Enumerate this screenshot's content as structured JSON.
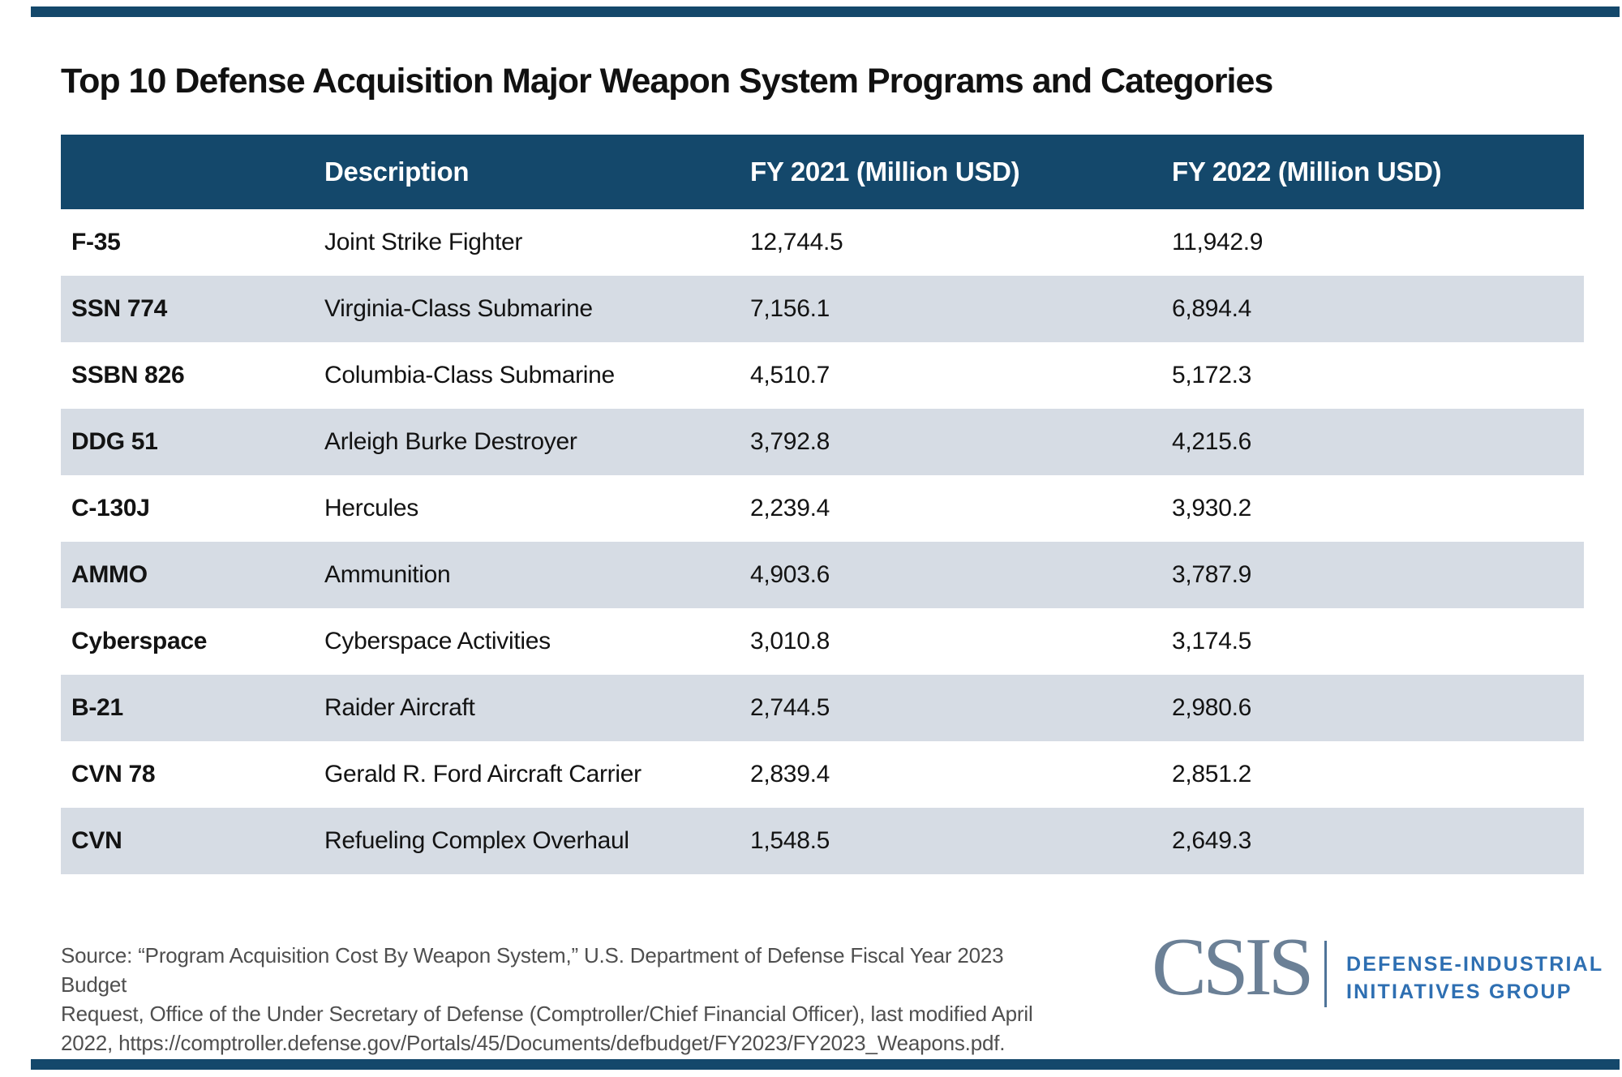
{
  "page": {
    "title": "Top 10 Defense Acquisition Major Weapon System Programs and Categories"
  },
  "table": {
    "header": {
      "program": "",
      "description": "Description",
      "fy2021": "FY 2021 (Million USD)",
      "fy2022": "FY 2022 (Million USD)"
    },
    "rows": [
      {
        "program": "F-35",
        "description": "Joint Strike Fighter",
        "fy2021": "12,744.5",
        "fy2022": "11,942.9"
      },
      {
        "program": "SSN 774",
        "description": "Virginia-Class Submarine",
        "fy2021": "7,156.1",
        "fy2022": "6,894.4"
      },
      {
        "program": "SSBN 826",
        "description": "Columbia-Class Submarine",
        "fy2021": "4,510.7",
        "fy2022": "5,172.3"
      },
      {
        "program": "DDG 51",
        "description": "Arleigh Burke Destroyer",
        "fy2021": "3,792.8",
        "fy2022": "4,215.6"
      },
      {
        "program": "C-130J",
        "description": "Hercules",
        "fy2021": "2,239.4",
        "fy2022": "3,930.2"
      },
      {
        "program": "AMMO",
        "description": "Ammunition",
        "fy2021": "4,903.6",
        "fy2022": "3,787.9"
      },
      {
        "program": "Cyberspace",
        "description": "Cyberspace Activities",
        "fy2021": "3,010.8",
        "fy2022": "3,174.5"
      },
      {
        "program": "B-21",
        "description": "Raider Aircraft",
        "fy2021": "2,744.5",
        "fy2022": "2,980.6"
      },
      {
        "program": "CVN 78",
        "description": "Gerald R. Ford Aircraft Carrier",
        "fy2021": "2,839.4",
        "fy2022": "2,851.2"
      },
      {
        "program": "CVN",
        "description": "Refueling Complex Overhaul",
        "fy2021": "1,548.5",
        "fy2022": "2,649.3"
      }
    ]
  },
  "source": {
    "lines": [
      "Source: “Program Acquisition Cost By Weapon System,” U.S. Department of Defense Fiscal Year 2023 Budget",
      "Request, Office of the Under Secretary of Defense (Comptroller/Chief Financial Officer), last modified April",
      "2022, https://comptroller.defense.gov/Portals/45/Documents/defbudget/FY2023/FY2023_Weapons.pdf."
    ]
  },
  "logo": {
    "csis": "CSIS",
    "group_line1": "DEFENSE-INDUSTRIAL",
    "group_line2": "INITIATIVES GROUP"
  },
  "colors": {
    "navy": "#14486b",
    "row_alt": "#d6dce4",
    "text": "#131313",
    "source_gray": "#4f4f4f",
    "csis_slate": "#6b8096",
    "dig_blue": "#2e6fb2",
    "rule_slate": "#4f7499"
  },
  "chart_data": {
    "type": "table",
    "title": "Top 10 Defense Acquisition Major Weapon System Programs and Categories",
    "columns": [
      "",
      "Description",
      "FY 2021 (Million USD)",
      "FY 2022 (Million USD)"
    ],
    "rows": [
      [
        "F-35",
        "Joint Strike Fighter",
        12744.5,
        11942.9
      ],
      [
        "SSN 774",
        "Virginia-Class Submarine",
        7156.1,
        6894.4
      ],
      [
        "SSBN 826",
        "Columbia-Class Submarine",
        4510.7,
        5172.3
      ],
      [
        "DDG 51",
        "Arleigh Burke Destroyer",
        3792.8,
        4215.6
      ],
      [
        "C-130J",
        "Hercules",
        2239.4,
        3930.2
      ],
      [
        "AMMO",
        "Ammunition",
        4903.6,
        3787.9
      ],
      [
        "Cyberspace",
        "Cyberspace Activities",
        3010.8,
        3174.5
      ],
      [
        "B-21",
        "Raider Aircraft",
        2744.5,
        2980.6
      ],
      [
        "CVN 78",
        "Gerald R. Ford Aircraft Carrier",
        2839.4,
        2851.2
      ],
      [
        "CVN",
        "Refueling Complex Overhaul",
        1548.5,
        2649.3
      ]
    ]
  }
}
